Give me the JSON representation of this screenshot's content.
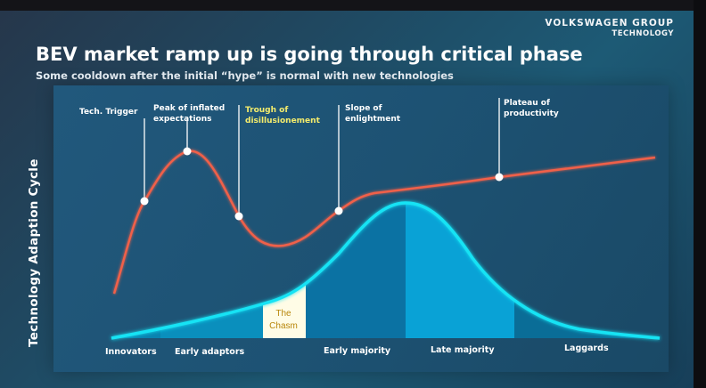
{
  "brand": {
    "line1": "VOLKSWAGEN GROUP",
    "line2": "TECHNOLOGY"
  },
  "title": "BEV market ramp up is going through critical phase",
  "subtitle": "Some cooldown after the initial “hype” is normal with new technologies",
  "y_axis_label": "Technology Adaption Cycle",
  "hype_phases": [
    {
      "lines": [
        "Tech. Trigger"
      ],
      "highlight": false
    },
    {
      "lines": [
        "Peak of inflated",
        "expectations"
      ],
      "highlight": false
    },
    {
      "lines": [
        "Trough of",
        "disillusionement"
      ],
      "highlight": true
    },
    {
      "lines": [
        "Slope of",
        "enlightment"
      ],
      "highlight": false
    },
    {
      "lines": [
        "Plateau of",
        "productivity"
      ],
      "highlight": false
    }
  ],
  "adoption_segments": [
    "Innovators",
    "Early adaptors",
    "Early majority",
    "Late majority",
    "Laggards"
  ],
  "chasm_label": [
    "The",
    "Chasm"
  ],
  "colors": {
    "hype_curve": "#f0604a",
    "adoption_curve": "#19e3f4",
    "chasm_fill": "#fffce6",
    "chasm_text": "#b8860b",
    "trough_highlight": "#f4ec6c"
  }
}
